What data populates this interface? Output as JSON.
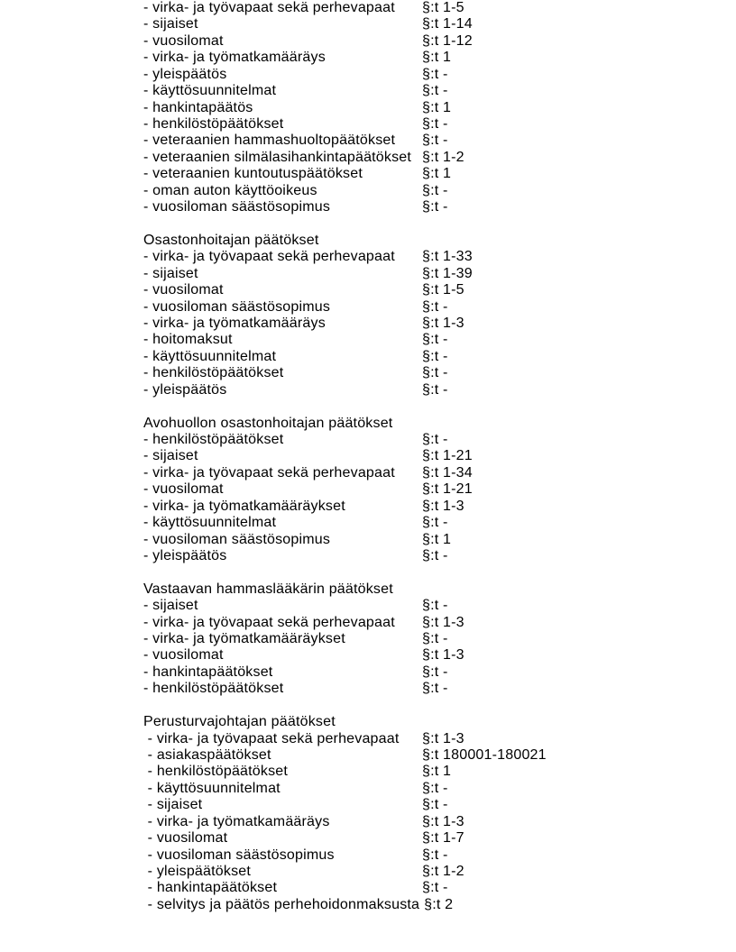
{
  "page": {
    "background": "#ffffff",
    "text_color": "#000000"
  },
  "document": {
    "sections": [
      {
        "title": "",
        "items": [
          {
            "label": "- virka- ja työvapaat sekä perhevapaat",
            "value": "§:t 1-5"
          },
          {
            "label": "- sijaiset",
            "value": "§:t 1-14"
          },
          {
            "label": "- vuosilomat",
            "value": "§:t 1-12"
          },
          {
            "label": "- virka- ja työmatkamääräys",
            "value": "§:t 1"
          },
          {
            "label": "- yleispäätös",
            "value": "§:t -"
          },
          {
            "label": "- käyttösuunnitelmat",
            "value": "§:t -"
          },
          {
            "label": "- hankintapäätös",
            "value": "§:t 1"
          },
          {
            "label": "- henkilöstöpäätökset",
            "value": "§:t -"
          },
          {
            "label": "- veteraanien hammashuoltopäätökset",
            "value": "§:t -"
          },
          {
            "label": "- veteraanien silmälasihankintapäätökset",
            "value": "§:t 1-2"
          },
          {
            "label": "- veteraanien kuntoutuspäätökset",
            "value": "§:t 1"
          },
          {
            "label": "- oman auton käyttöoikeus",
            "value": "§:t -"
          },
          {
            "label": "- vuosiloman säästösopimus",
            "value": "§:t -"
          }
        ]
      },
      {
        "title": "Osastonhoitajan päätökset",
        "items": [
          {
            "label": "- virka- ja työvapaat sekä perhevapaat",
            "value": "§:t 1-33"
          },
          {
            "label": "- sijaiset",
            "value": "§:t 1-39"
          },
          {
            "label": "- vuosilomat",
            "value": "§:t 1-5"
          },
          {
            "label": "- vuosiloman säästösopimus",
            "value": "§:t -"
          },
          {
            "label": "- virka- ja työmatkamääräys",
            "value": "§:t 1-3"
          },
          {
            "label": "- hoitomaksut",
            "value": "§:t -"
          },
          {
            "label": "- käyttösuunnitelmat",
            "value": "§:t -"
          },
          {
            "label": "- henkilöstöpäätökset",
            "value": "§:t -"
          },
          {
            "label": "- yleispäätös",
            "value": "§:t -"
          }
        ]
      },
      {
        "title": "Avohuollon osastonhoitajan päätökset",
        "items": [
          {
            "label": "- henkilöstöpäätökset",
            "value": "§:t -"
          },
          {
            "label": "- sijaiset",
            "value": "§:t 1-21"
          },
          {
            "label": "- virka- ja työvapaat sekä perhevapaat",
            "value": "§:t 1-34"
          },
          {
            "label": "- vuosilomat",
            "value": "§:t 1-21"
          },
          {
            "label": "- virka- ja työmatkamääräykset",
            "value": "§:t 1-3"
          },
          {
            "label": "- käyttösuunnitelmat",
            "value": "§:t -"
          },
          {
            "label": "- vuosiloman säästösopimus",
            "value": "§:t 1"
          },
          {
            "label": "- yleispäätös",
            "value": "§:t -"
          }
        ]
      },
      {
        "title": "Vastaavan hammaslääkärin päätökset",
        "items": [
          {
            "label": "- sijaiset",
            "value": "§:t -"
          },
          {
            "label": "- virka- ja työvapaat sekä perhevapaat",
            "value": "§:t 1-3"
          },
          {
            "label": "- virka- ja työmatkamääräykset",
            "value": "§:t -"
          },
          {
            "label": "- vuosilomat",
            "value": "§:t 1-3"
          },
          {
            "label": "- hankintapäätökset",
            "value": "§:t -"
          },
          {
            "label": "- henkilöstöpäätökset",
            "value": "§:t -"
          }
        ]
      },
      {
        "title": "Perusturvajohtajan päätökset",
        "items": [
          {
            "label": " - virka- ja työvapaat sekä perhevapaat",
            "value": "§:t 1-3"
          },
          {
            "label": " - asiakaspäätökset",
            "value": "§:t 180001-180021"
          },
          {
            "label": " - henkilöstöpäätökset",
            "value": "§:t 1"
          },
          {
            "label": " - käyttösuunnitelmat",
            "value": "§:t -"
          },
          {
            "label": " - sijaiset",
            "value": "§:t -"
          },
          {
            "label": " - virka- ja työmatkamääräys",
            "value": "§:t 1-3"
          },
          {
            "label": " - vuosilomat",
            "value": "§:t 1-7"
          },
          {
            "label": " - vuosiloman säästösopimus",
            "value": "§:t -"
          },
          {
            "label": " - yleispäätökset",
            "value": "§:t 1-2"
          },
          {
            "label": " - hankintapäätökset",
            "value": "§:t -"
          },
          {
            "label": " - selvitys ja päätös perhehoidonmaksusta",
            "value": "§:t 2"
          }
        ]
      }
    ]
  }
}
